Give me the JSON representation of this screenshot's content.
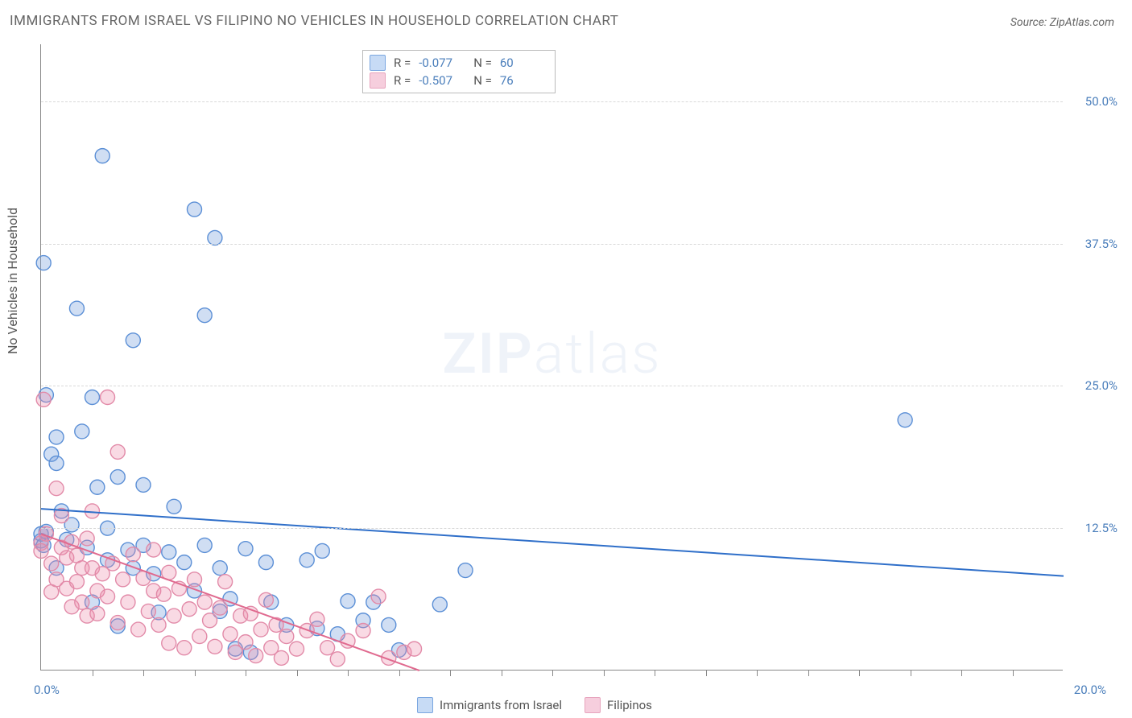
{
  "title": "IMMIGRANTS FROM ISRAEL VS FILIPINO NO VEHICLES IN HOUSEHOLD CORRELATION CHART",
  "source_label": "Source:",
  "source_name": "ZipAtlas.com",
  "yaxis_title": "No Vehicles in Household",
  "watermark_a": "ZIP",
  "watermark_b": "atlas",
  "xlim": [
    0,
    20
  ],
  "ylim": [
    0,
    55
  ],
  "x_label_min": "0.0%",
  "x_label_max": "20.0%",
  "y_ticks": [
    {
      "v": 12.5,
      "label": "12.5%"
    },
    {
      "v": 25.0,
      "label": "25.0%"
    },
    {
      "v": 37.5,
      "label": "37.5%"
    },
    {
      "v": 50.0,
      "label": "50.0%"
    }
  ],
  "x_ticks_minor": [
    1,
    2,
    3,
    4,
    5,
    6,
    7,
    8,
    9,
    10,
    11,
    12,
    13,
    14,
    15,
    16,
    17,
    18,
    19
  ],
  "marker_radius": 9,
  "marker_stroke_width": 1.4,
  "line_width": 2,
  "series": [
    {
      "key": "israel",
      "name": "Immigrants from Israel",
      "color_fill": "rgba(120,160,220,0.35)",
      "color_stroke": "#5b8fd6",
      "line_color": "#2f6fc9",
      "swatch_bg": "#c7dbf5",
      "swatch_border": "#7aa6e0",
      "R_label": "R =",
      "R_value": "-0.077",
      "N_label": "N =",
      "N_value": "60",
      "regline": {
        "x1": 0,
        "y1": 14.2,
        "x2": 20,
        "y2": 8.3
      },
      "points": [
        [
          0.0,
          11.4
        ],
        [
          0.0,
          12.0
        ],
        [
          0.05,
          11.0
        ],
        [
          0.05,
          35.8
        ],
        [
          0.1,
          12.2
        ],
        [
          0.1,
          24.2
        ],
        [
          0.2,
          19.0
        ],
        [
          0.3,
          9.0
        ],
        [
          0.3,
          20.5
        ],
        [
          0.3,
          18.2
        ],
        [
          0.4,
          14.0
        ],
        [
          0.5,
          11.5
        ],
        [
          0.6,
          12.8
        ],
        [
          0.7,
          31.8
        ],
        [
          0.8,
          21.0
        ],
        [
          0.9,
          10.8
        ],
        [
          1.0,
          6.0
        ],
        [
          1.0,
          24.0
        ],
        [
          1.1,
          16.1
        ],
        [
          1.2,
          45.2
        ],
        [
          1.3,
          9.7
        ],
        [
          1.3,
          12.5
        ],
        [
          1.5,
          3.9
        ],
        [
          1.5,
          17.0
        ],
        [
          1.7,
          10.6
        ],
        [
          1.8,
          9.0
        ],
        [
          1.8,
          29.0
        ],
        [
          2.0,
          11.0
        ],
        [
          2.0,
          16.3
        ],
        [
          2.2,
          8.5
        ],
        [
          2.3,
          5.1
        ],
        [
          2.5,
          10.4
        ],
        [
          2.6,
          14.4
        ],
        [
          2.8,
          9.5
        ],
        [
          3.0,
          40.5
        ],
        [
          3.0,
          7.0
        ],
        [
          3.2,
          31.2
        ],
        [
          3.2,
          11.0
        ],
        [
          3.4,
          38.0
        ],
        [
          3.5,
          5.2
        ],
        [
          3.5,
          9.0
        ],
        [
          3.7,
          6.3
        ],
        [
          3.8,
          1.9
        ],
        [
          4.0,
          10.7
        ],
        [
          4.1,
          1.6
        ],
        [
          4.4,
          9.5
        ],
        [
          4.5,
          6.0
        ],
        [
          4.8,
          4.0
        ],
        [
          5.2,
          9.7
        ],
        [
          5.4,
          3.7
        ],
        [
          5.5,
          10.5
        ],
        [
          5.8,
          3.2
        ],
        [
          6.0,
          6.1
        ],
        [
          6.3,
          4.4
        ],
        [
          6.5,
          6.0
        ],
        [
          6.8,
          4.0
        ],
        [
          7.0,
          1.8
        ],
        [
          7.8,
          5.8
        ],
        [
          8.3,
          8.8
        ],
        [
          16.9,
          22.0
        ]
      ]
    },
    {
      "key": "filipinos",
      "name": "Filipinos",
      "color_fill": "rgba(235,140,170,0.32)",
      "color_stroke": "#e28aa8",
      "line_color": "#e06a8f",
      "swatch_bg": "#f6cedd",
      "swatch_border": "#e7a4bd",
      "R_label": "R =",
      "R_value": "-0.507",
      "N_label": "N =",
      "N_value": "76",
      "regline": {
        "x1": 0,
        "y1": 12.0,
        "x2": 7.4,
        "y2": 0.0
      },
      "points": [
        [
          0.0,
          11.2
        ],
        [
          0.0,
          10.5
        ],
        [
          0.05,
          23.8
        ],
        [
          0.1,
          12.0
        ],
        [
          0.2,
          9.4
        ],
        [
          0.2,
          6.9
        ],
        [
          0.3,
          16.0
        ],
        [
          0.3,
          8.0
        ],
        [
          0.4,
          10.8
        ],
        [
          0.4,
          13.6
        ],
        [
          0.5,
          7.2
        ],
        [
          0.5,
          9.9
        ],
        [
          0.6,
          11.3
        ],
        [
          0.6,
          5.6
        ],
        [
          0.7,
          10.1
        ],
        [
          0.7,
          7.8
        ],
        [
          0.8,
          9.0
        ],
        [
          0.8,
          6.0
        ],
        [
          0.9,
          11.6
        ],
        [
          0.9,
          4.8
        ],
        [
          1.0,
          9.0
        ],
        [
          1.0,
          14.0
        ],
        [
          1.1,
          7.0
        ],
        [
          1.1,
          5.0
        ],
        [
          1.2,
          8.5
        ],
        [
          1.3,
          24.0
        ],
        [
          1.3,
          6.5
        ],
        [
          1.4,
          9.4
        ],
        [
          1.5,
          19.2
        ],
        [
          1.5,
          4.2
        ],
        [
          1.6,
          8.0
        ],
        [
          1.7,
          6.0
        ],
        [
          1.8,
          10.2
        ],
        [
          1.9,
          3.6
        ],
        [
          2.0,
          8.1
        ],
        [
          2.1,
          5.2
        ],
        [
          2.2,
          7.0
        ],
        [
          2.2,
          10.6
        ],
        [
          2.3,
          4.0
        ],
        [
          2.4,
          6.7
        ],
        [
          2.5,
          2.4
        ],
        [
          2.5,
          8.6
        ],
        [
          2.6,
          4.8
        ],
        [
          2.7,
          7.2
        ],
        [
          2.8,
          2.0
        ],
        [
          2.9,
          5.4
        ],
        [
          3.0,
          8.0
        ],
        [
          3.1,
          3.0
        ],
        [
          3.2,
          6.0
        ],
        [
          3.3,
          4.4
        ],
        [
          3.4,
          2.1
        ],
        [
          3.5,
          5.5
        ],
        [
          3.6,
          7.8
        ],
        [
          3.7,
          3.2
        ],
        [
          3.8,
          1.6
        ],
        [
          3.9,
          4.8
        ],
        [
          4.0,
          2.5
        ],
        [
          4.1,
          5.0
        ],
        [
          4.2,
          1.3
        ],
        [
          4.3,
          3.6
        ],
        [
          4.4,
          6.2
        ],
        [
          4.5,
          2.0
        ],
        [
          4.6,
          4.0
        ],
        [
          4.7,
          1.1
        ],
        [
          4.8,
          3.0
        ],
        [
          5.0,
          1.9
        ],
        [
          5.2,
          3.5
        ],
        [
          5.4,
          4.5
        ],
        [
          5.6,
          2.0
        ],
        [
          5.8,
          1.0
        ],
        [
          6.0,
          2.6
        ],
        [
          6.3,
          3.5
        ],
        [
          6.6,
          6.5
        ],
        [
          6.8,
          1.1
        ],
        [
          7.1,
          1.6
        ],
        [
          7.3,
          1.9
        ]
      ]
    }
  ]
}
